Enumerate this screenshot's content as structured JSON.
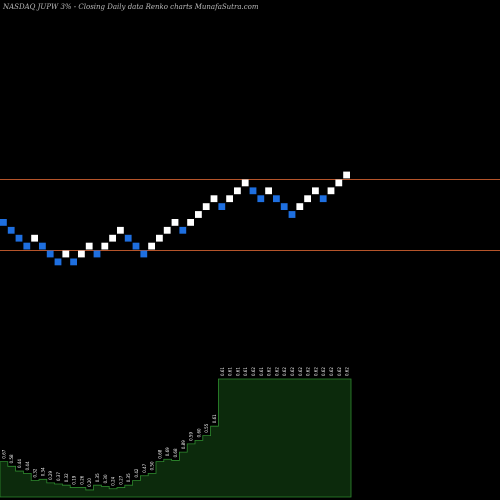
{
  "header": {
    "symbol": "NASDAQ JUPW",
    "box_pct": "3%",
    "separator": "-",
    "description": "Closing Daily data  Renko  charts MunafaSutra.com"
  },
  "colors": {
    "background": "#000000",
    "up_brick": "#ffffff",
    "down_brick": "#1e6fe0",
    "reference_line": "#b5542a",
    "volume_fill": "#0c2a0c",
    "volume_border": "#2e8b2e"
  },
  "chart_data": {
    "type": "renko",
    "bricks": [
      {
        "dir": "down",
        "level": 0
      },
      {
        "dir": "down",
        "level": -1
      },
      {
        "dir": "down",
        "level": -2
      },
      {
        "dir": "down",
        "level": -3
      },
      {
        "dir": "up",
        "level": -2
      },
      {
        "dir": "down",
        "level": -3
      },
      {
        "dir": "down",
        "level": -4
      },
      {
        "dir": "down",
        "level": -5
      },
      {
        "dir": "up",
        "level": -4
      },
      {
        "dir": "down",
        "level": -5
      },
      {
        "dir": "up",
        "level": -4
      },
      {
        "dir": "up",
        "level": -3
      },
      {
        "dir": "down",
        "level": -4
      },
      {
        "dir": "up",
        "level": -3
      },
      {
        "dir": "up",
        "level": -2
      },
      {
        "dir": "up",
        "level": -1
      },
      {
        "dir": "down",
        "level": -2
      },
      {
        "dir": "down",
        "level": -3
      },
      {
        "dir": "down",
        "level": -4
      },
      {
        "dir": "up",
        "level": -3
      },
      {
        "dir": "up",
        "level": -2
      },
      {
        "dir": "up",
        "level": -1
      },
      {
        "dir": "up",
        "level": 0
      },
      {
        "dir": "down",
        "level": -1
      },
      {
        "dir": "up",
        "level": 0
      },
      {
        "dir": "up",
        "level": 1
      },
      {
        "dir": "up",
        "level": 2
      },
      {
        "dir": "up",
        "level": 3
      },
      {
        "dir": "down",
        "level": 2
      },
      {
        "dir": "up",
        "level": 3
      },
      {
        "dir": "up",
        "level": 4
      },
      {
        "dir": "up",
        "level": 5
      },
      {
        "dir": "down",
        "level": 4
      },
      {
        "dir": "down",
        "level": 3
      },
      {
        "dir": "up",
        "level": 4
      },
      {
        "dir": "down",
        "level": 3
      },
      {
        "dir": "down",
        "level": 2
      },
      {
        "dir": "down",
        "level": 1
      },
      {
        "dir": "up",
        "level": 2
      },
      {
        "dir": "up",
        "level": 3
      },
      {
        "dir": "up",
        "level": 4
      },
      {
        "dir": "down",
        "level": 3
      },
      {
        "dir": "up",
        "level": 4
      },
      {
        "dir": "up",
        "level": 5
      },
      {
        "dir": "up",
        "level": 6
      }
    ],
    "reference_levels": [
      5.5,
      -3.5
    ],
    "volume_labels": [
      "0.67",
      "0.58",
      "0.44",
      "0.44",
      "0.32",
      "0.34",
      "0.29",
      "0.37",
      "0.32",
      "0.19",
      "0.26",
      "0.20",
      "0.35",
      "0.30",
      "0.24",
      "0.27",
      "0.35",
      "0.42",
      "0.47",
      "0.50",
      "0.68",
      "0.69",
      "0.68",
      "0.89",
      "0.59",
      "0.60",
      "0.55",
      "0.61",
      "0.61",
      "0.61",
      "0.61",
      "0.61",
      "0.62",
      "0.61",
      "0.62",
      "0.62",
      "0.62",
      "0.62",
      "0.62",
      "0.62",
      "0.62",
      "0.62",
      "0.62",
      "0.62",
      "0.62"
    ],
    "volume_heights": [
      0.3,
      0.26,
      0.22,
      0.2,
      0.14,
      0.15,
      0.12,
      0.11,
      0.1,
      0.08,
      0.08,
      0.06,
      0.1,
      0.09,
      0.07,
      0.08,
      0.1,
      0.14,
      0.18,
      0.2,
      0.3,
      0.32,
      0.31,
      0.38,
      0.45,
      0.48,
      0.52,
      0.6,
      1.0,
      1.0,
      1.0,
      1.0,
      1.0,
      1.0,
      1.0,
      1.0,
      1.0,
      1.0,
      1.0,
      1.0,
      1.0,
      1.0,
      1.0,
      1.0,
      1.0
    ]
  }
}
